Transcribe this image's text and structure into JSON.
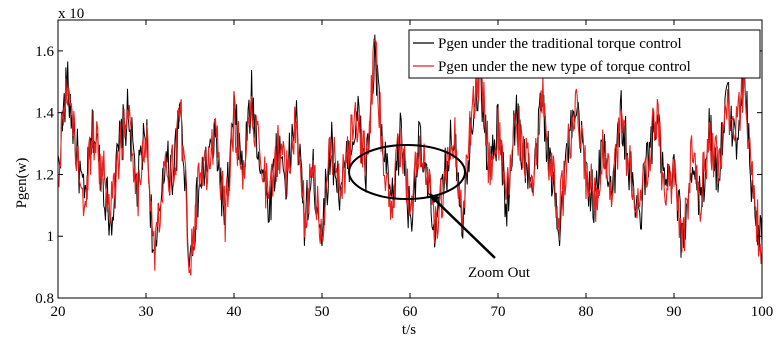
{
  "chart_data": {
    "type": "line",
    "title": "",
    "xlabel": "t/s",
    "ylabel": "Pgen(w)",
    "y_multiplier_label": "x 10",
    "xlim": [
      20,
      100
    ],
    "ylim": [
      0.8,
      1.7
    ],
    "x_ticks": [
      20,
      30,
      40,
      50,
      60,
      70,
      80,
      90,
      100
    ],
    "x_tick_labels": [
      "20",
      "30",
      "40",
      "50",
      "60",
      "70",
      "80",
      "90",
      "100"
    ],
    "y_ticks": [
      0.8,
      1.0,
      1.2,
      1.4,
      1.6
    ],
    "y_tick_labels": [
      "0.8",
      "1",
      "1.2",
      "1.4",
      "1.6"
    ],
    "grid": false,
    "legend_position": "top-right",
    "series": [
      {
        "name": "Pgen under the traditional torque control",
        "color": "#000000",
        "x": [
          20,
          21,
          22,
          23,
          24,
          25,
          26,
          27,
          28,
          29,
          30,
          31,
          32,
          33,
          34,
          35,
          36,
          37,
          38,
          39,
          40,
          41,
          42,
          43,
          44,
          45,
          46,
          47,
          48,
          49,
          50,
          51,
          52,
          53,
          54,
          55,
          56,
          57,
          58,
          59,
          60,
          61,
          62,
          63,
          64,
          65,
          66,
          67,
          68,
          69,
          70,
          71,
          72,
          73,
          74,
          75,
          76,
          77,
          78,
          79,
          80,
          81,
          82,
          83,
          84,
          85,
          86,
          87,
          88,
          89,
          90,
          91,
          92,
          93,
          94,
          95,
          96,
          97,
          98,
          99,
          100
        ],
        "values": [
          1.22,
          1.5,
          1.3,
          1.1,
          1.35,
          1.2,
          1.05,
          1.3,
          1.4,
          1.15,
          1.35,
          0.88,
          1.25,
          1.2,
          1.4,
          0.92,
          1.15,
          1.25,
          1.3,
          1.05,
          1.4,
          1.2,
          1.45,
          1.25,
          1.1,
          1.3,
          1.18,
          1.4,
          1.05,
          1.2,
          1.02,
          1.3,
          1.15,
          1.25,
          1.4,
          1.2,
          1.58,
          1.25,
          1.1,
          1.35,
          1.05,
          1.3,
          1.15,
          1.02,
          1.2,
          1.35,
          1.05,
          1.4,
          1.52,
          1.2,
          1.35,
          1.1,
          1.4,
          1.25,
          1.15,
          1.45,
          1.2,
          1.05,
          1.3,
          1.38,
          1.22,
          1.1,
          1.3,
          1.15,
          1.4,
          1.2,
          1.05,
          1.25,
          1.38,
          1.15,
          1.2,
          0.97,
          1.25,
          1.1,
          1.35,
          1.2,
          1.45,
          1.3,
          1.55,
          1.1,
          0.97
        ]
      },
      {
        "name": "Pgen under the new type of torque control",
        "color": "#e8201e",
        "x": [
          20,
          21,
          22,
          23,
          24,
          25,
          26,
          27,
          28,
          29,
          30,
          31,
          32,
          33,
          34,
          35,
          36,
          37,
          38,
          39,
          40,
          41,
          42,
          43,
          44,
          45,
          46,
          47,
          48,
          49,
          50,
          51,
          52,
          53,
          54,
          55,
          56,
          57,
          58,
          59,
          60,
          61,
          62,
          63,
          64,
          65,
          66,
          67,
          68,
          69,
          70,
          71,
          72,
          73,
          74,
          75,
          76,
          77,
          78,
          79,
          80,
          81,
          82,
          83,
          84,
          85,
          86,
          87,
          88,
          89,
          90,
          91,
          92,
          93,
          94,
          95,
          96,
          97,
          98,
          99,
          100
        ],
        "values": [
          1.2,
          1.52,
          1.28,
          1.12,
          1.33,
          1.22,
          1.07,
          1.28,
          1.42,
          1.13,
          1.33,
          0.92,
          1.23,
          1.22,
          1.38,
          0.9,
          1.17,
          1.23,
          1.32,
          1.07,
          1.38,
          1.22,
          1.43,
          1.27,
          1.12,
          1.28,
          1.2,
          1.38,
          1.07,
          1.22,
          1.0,
          1.32,
          1.13,
          1.27,
          1.38,
          1.22,
          1.61,
          1.23,
          1.12,
          1.33,
          1.07,
          1.28,
          1.17,
          1.0,
          1.22,
          1.33,
          1.07,
          1.38,
          1.55,
          1.22,
          1.33,
          1.12,
          1.38,
          1.27,
          1.13,
          1.47,
          1.22,
          1.07,
          1.28,
          1.4,
          1.2,
          1.12,
          1.28,
          1.17,
          1.38,
          1.22,
          1.07,
          1.23,
          1.4,
          1.13,
          1.22,
          0.95,
          1.27,
          1.12,
          1.33,
          1.22,
          1.43,
          1.32,
          1.53,
          1.12,
          0.95
        ]
      }
    ],
    "annotations": [
      {
        "text": "Zoom Out",
        "target_x": 60,
        "target_y": 1.22
      }
    ]
  }
}
